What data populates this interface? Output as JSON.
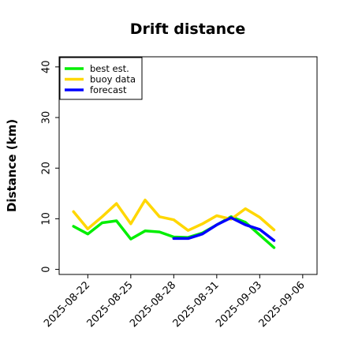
{
  "chart_data": {
    "type": "line",
    "title": "Drift distance",
    "xlabel": "",
    "ylabel": "Distance (km)",
    "ylim": [
      -1,
      42
    ],
    "xlim": [
      "2025-08-20",
      "2025-09-07"
    ],
    "x_ticks": [
      "2025-08-22",
      "2025-08-25",
      "2025-08-28",
      "2025-08-31",
      "2025-09-03",
      "2025-09-06"
    ],
    "highlighted_tick": "2025-08-28",
    "highlight_color": "#228b22",
    "y_ticks": [
      0,
      10,
      20,
      30,
      40
    ],
    "grid": false,
    "legend_position": "top-left",
    "series": [
      {
        "name": "best est.",
        "color": "#00ee00",
        "x": [
          "2025-08-21",
          "2025-08-22",
          "2025-08-23",
          "2025-08-24",
          "2025-08-25",
          "2025-08-26",
          "2025-08-27",
          "2025-08-28",
          "2025-08-29",
          "2025-08-30",
          "2025-08-31",
          "2025-09-01",
          "2025-09-02",
          "2025-09-03",
          "2025-09-04"
        ],
        "values": [
          8.5,
          7.0,
          9.2,
          9.6,
          6.0,
          7.6,
          7.4,
          6.4,
          6.3,
          7.2,
          8.8,
          10.4,
          9.3,
          6.8,
          4.3
        ]
      },
      {
        "name": "buoy data",
        "color": "#ffd700",
        "x": [
          "2025-08-21",
          "2025-08-22",
          "2025-08-23",
          "2025-08-24",
          "2025-08-25",
          "2025-08-26",
          "2025-08-27",
          "2025-08-28",
          "2025-08-29",
          "2025-08-30",
          "2025-08-31",
          "2025-09-01",
          "2025-09-02",
          "2025-09-03",
          "2025-09-04"
        ],
        "values": [
          11.4,
          8.0,
          10.4,
          13.0,
          9.0,
          13.7,
          10.4,
          9.8,
          7.7,
          9.0,
          10.6,
          9.9,
          12.0,
          10.3,
          7.8
        ]
      },
      {
        "name": "forecast",
        "color": "#0000ff",
        "x": [
          "2025-08-28",
          "2025-08-29",
          "2025-08-30",
          "2025-08-31",
          "2025-09-01",
          "2025-09-02",
          "2025-09-03",
          "2025-09-04"
        ],
        "values": [
          6.1,
          6.1,
          7.0,
          8.8,
          10.2,
          8.8,
          7.9,
          5.7
        ]
      }
    ]
  }
}
